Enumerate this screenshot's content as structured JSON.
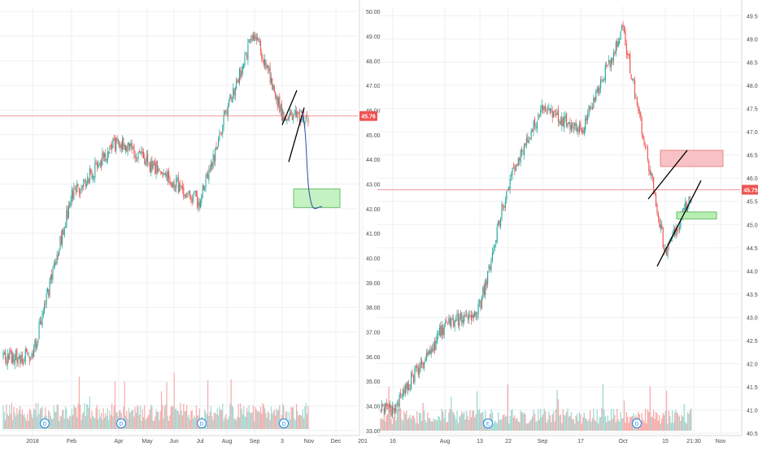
{
  "chart_data": [
    {
      "type": "candlestick",
      "panel": "left",
      "title": "",
      "y_range": [
        32.8,
        50.2
      ],
      "y_ticks": [
        "33.00",
        "34.00",
        "35.00",
        "36.00",
        "37.00",
        "38.00",
        "39.00",
        "40.00",
        "41.00",
        "42.00",
        "43.00",
        "44.00",
        "45.00",
        "46.00",
        "47.00",
        "48.00",
        "49.00",
        "50.00"
      ],
      "x_ticks": [
        "2018",
        "Feb",
        "Apr",
        "May",
        "Jun",
        "Jul",
        "Aug",
        "Sep",
        "3",
        "Nov",
        "Dec",
        "201"
      ],
      "price_badge": "45.76",
      "horizontal_line_price": 45.76,
      "event_markers": [
        "D",
        "D",
        "D",
        "D"
      ],
      "key_closes": [
        {
          "period": "2018",
          "price": 36.0
        },
        {
          "period": "Feb",
          "price": 42.5
        },
        {
          "period": "Apr",
          "price": 44.8
        },
        {
          "period": "May",
          "price": 43.9
        },
        {
          "period": "Jun",
          "price": 43.0
        },
        {
          "period": "Jul",
          "price": 42.3
        },
        {
          "period": "Aug",
          "price": 46.0
        },
        {
          "period": "Sep",
          "price": 49.2
        },
        {
          "period": "3",
          "price": 45.76
        }
      ],
      "target_box": {
        "price_low": 42.05,
        "price_high": 42.8
      },
      "grid": true
    },
    {
      "type": "candlestick",
      "panel": "right",
      "title": "",
      "y_range": [
        40.45,
        49.7
      ],
      "y_ticks": [
        "40.50",
        "41.00",
        "41.50",
        "42.00",
        "42.50",
        "43.00",
        "43.50",
        "44.00",
        "44.50",
        "45.00",
        "45.50",
        "46.00",
        "46.50",
        "47.00",
        "47.50",
        "48.00",
        "48.50",
        "49.00",
        "49.50"
      ],
      "x_ticks": [
        "16",
        "Aug",
        "13",
        "22",
        "Sep",
        "17",
        "Oct",
        "15",
        "21:30",
        "Nov"
      ],
      "price_badge": "45.75",
      "horizontal_line_price": 45.75,
      "event_markers": [
        "E",
        "D"
      ],
      "key_closes": [
        {
          "period": "16",
          "price": 41.0
        },
        {
          "period": "Aug",
          "price": 42.8
        },
        {
          "period": "13",
          "price": 43.2
        },
        {
          "period": "22",
          "price": 45.9
        },
        {
          "period": "Sep",
          "price": 47.5
        },
        {
          "period": "17",
          "price": 47.0
        },
        {
          "period": "Oct",
          "price": 49.2
        },
        {
          "period": "15",
          "price": 44.4
        },
        {
          "period": "21:30",
          "price": 45.75
        }
      ],
      "resistance_box": {
        "price_low": 46.25,
        "price_high": 46.6
      },
      "support_box": {
        "price_low": 45.12,
        "price_high": 45.27
      },
      "grid": true
    }
  ]
}
